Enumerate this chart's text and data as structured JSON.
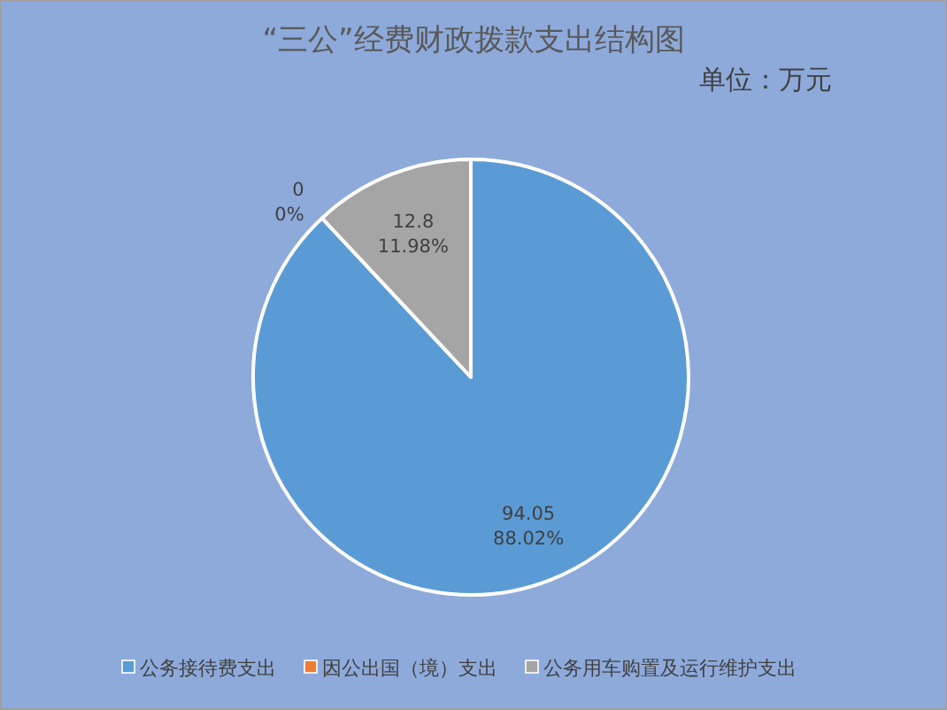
{
  "chart_data": {
    "type": "pie",
    "title": "“三公”经费财政拨款支出结构图",
    "subtitle": "单位：万元",
    "categories": [
      "公务接待费支出",
      "因公出国（境）支出",
      "公务用车购置及运行维护支出"
    ],
    "values": [
      94.05,
      0,
      12.8
    ],
    "colors": [
      "#5b9bd5",
      "#ed7d31",
      "#a5a5a5"
    ],
    "value_labels": [
      "94.05\n88.02%",
      "0\n0%",
      "12.8\n11.98%"
    ],
    "legend": "bottom"
  }
}
